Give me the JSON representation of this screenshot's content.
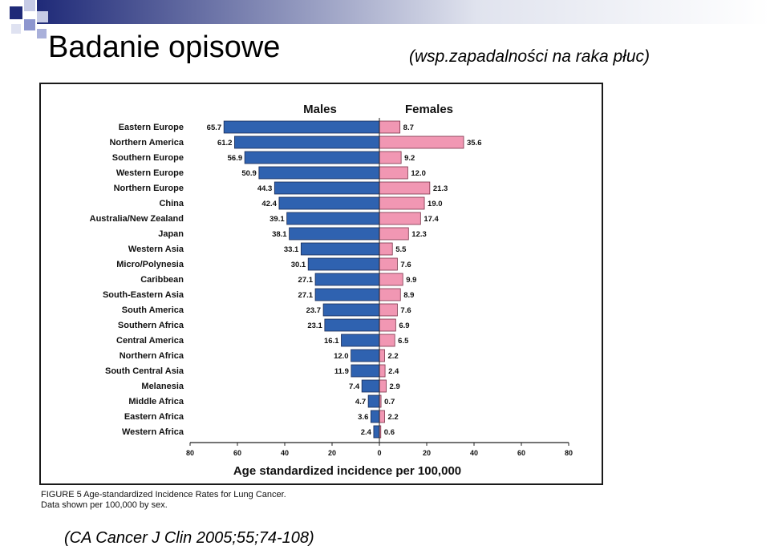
{
  "slide": {
    "title": "Badanie opisowe",
    "subtitle": "(wsp.zapadalności na raka płuc)",
    "caption_line1": "FIGURE 5   Age-standardized Incidence Rates for Lung Cancer.",
    "caption_line2": "Data shown per 100,000 by sex.",
    "citation": "(CA Cancer J Clin 2005;55;74-108)"
  },
  "colors": {
    "males": "#2f62b0",
    "females": "#f197b3",
    "header_gradient_start": "#1f2a78",
    "header_gradient_end": "#e0e3ee"
  },
  "chart_data": {
    "type": "bar",
    "orientation": "horizontal-diverging",
    "xlabel": "Age standardized incidence per 100,000",
    "xlim": [
      -80,
      80
    ],
    "xticks": [
      "80",
      "60",
      "40",
      "20",
      "0",
      "20",
      "40",
      "60",
      "80"
    ],
    "categories": [
      "Eastern Europe",
      "Northern America",
      "Southern Europe",
      "Western Europe",
      "Northern Europe",
      "China",
      "Australia/New Zealand",
      "Japan",
      "Western Asia",
      "Micro/Polynesia",
      "Caribbean",
      "South-Eastern Asia",
      "South America",
      "Southern Africa",
      "Central America",
      "Northern Africa",
      "South Central Asia",
      "Melanesia",
      "Middle Africa",
      "Eastern Africa",
      "Western Africa"
    ],
    "series": [
      {
        "name": "Males",
        "values": [
          65.7,
          61.2,
          56.9,
          50.9,
          44.3,
          42.4,
          39.1,
          38.1,
          33.1,
          30.1,
          27.1,
          27.1,
          23.7,
          23.1,
          16.1,
          12.0,
          11.9,
          7.4,
          4.7,
          3.6,
          2.4
        ],
        "labels": [
          "65.7",
          "61.2",
          "56.9",
          "50.9",
          "44.3",
          "42.4",
          "39.1",
          "38.1",
          "33.1",
          "30.1",
          "27.1",
          "27.1",
          "23.7",
          "23.1",
          "16.1",
          "12.0",
          "11.9",
          "7.4",
          "4.7",
          "3.6",
          "2.4"
        ]
      },
      {
        "name": "Females",
        "values": [
          8.7,
          35.6,
          9.2,
          12.0,
          21.3,
          19.0,
          17.4,
          12.3,
          5.5,
          7.6,
          9.9,
          8.9,
          7.6,
          6.9,
          6.5,
          2.2,
          2.4,
          2.9,
          0.7,
          2.2,
          0.6
        ],
        "labels": [
          "8.7",
          "35.6",
          "9.2",
          "12.0",
          "21.3",
          "19.0",
          "17.4",
          "12.3",
          "5.5",
          "7.6",
          "9.9",
          "8.9",
          "7.6",
          "6.9",
          "6.5",
          "2.2",
          "2.4",
          "2.9",
          "0.7",
          "2.2",
          "0.6"
        ]
      }
    ]
  }
}
